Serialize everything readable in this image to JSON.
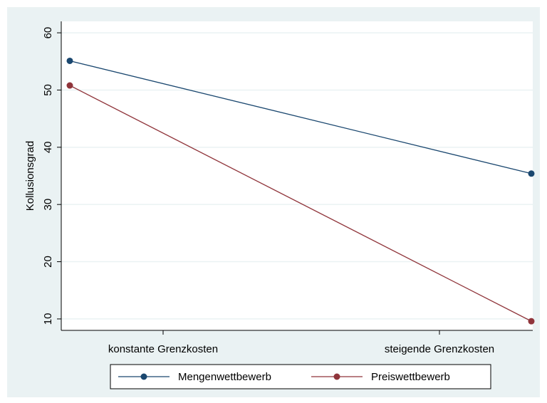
{
  "chart_data": {
    "type": "line",
    "categories": [
      "konstante Grenzkosten",
      "steigende Grenzkosten"
    ],
    "series": [
      {
        "name": "Mengenwettbewerb",
        "values": [
          55.1,
          35.4
        ],
        "color": "#1a476f"
      },
      {
        "name": "Preiswettbewerb",
        "values": [
          50.8,
          9.6
        ],
        "color": "#90353b"
      }
    ],
    "ylabel": "Kollusionsgrad",
    "xlabel": "",
    "ylim": [
      8,
      62
    ],
    "yticks": [
      10,
      20,
      30,
      40,
      50,
      60
    ],
    "grid": true,
    "legend": "bottom",
    "colors": {
      "outer_background": "#eaf2f3",
      "plot_background": "#ffffff",
      "grid": "#eaf2f3"
    }
  }
}
